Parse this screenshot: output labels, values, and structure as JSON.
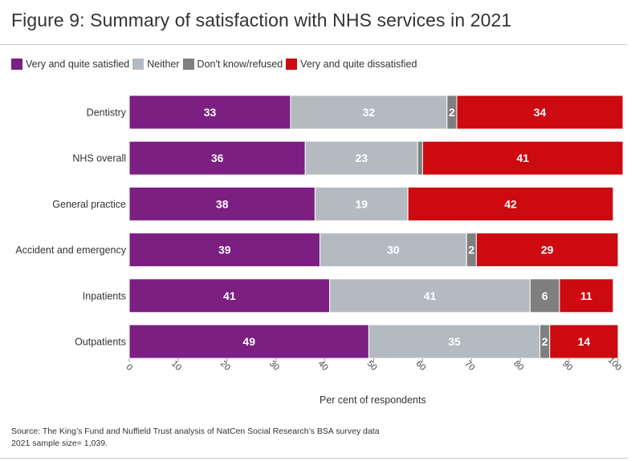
{
  "figure": {
    "title": "Figure 9: Summary of satisfaction with NHS services in 2021",
    "source_line1": "Source: The King’s Fund and Nuffield Trust analysis of NatCen Social Research’s BSA survey data",
    "source_line2": "2021 sample size= 1,039."
  },
  "chart_data": {
    "type": "bar",
    "orientation": "horizontal",
    "stacked": true,
    "title": "Figure 9: Summary of satisfaction with NHS services in 2021",
    "xlabel": "Per cent of respondents",
    "ylabel": "",
    "xlim": [
      0,
      100
    ],
    "xticks": [
      0,
      10,
      20,
      30,
      40,
      50,
      60,
      70,
      80,
      90,
      100
    ],
    "categories": [
      "Dentistry",
      "NHS overall",
      "General practice",
      "Accident and emergency",
      "Inpatients",
      "Outpatients"
    ],
    "series": [
      {
        "name": "Very and quite satisfied",
        "color": "#7b1f82",
        "values": [
          33,
          36,
          38,
          39,
          41,
          49
        ]
      },
      {
        "name": "Neither",
        "color": "#b3bbc0",
        "values": [
          32,
          23,
          19,
          30,
          41,
          35
        ]
      },
      {
        "name": "Don't know/refused",
        "color": "#7f7f7f",
        "values": [
          2,
          1,
          0,
          2,
          6,
          2
        ]
      },
      {
        "name": "Very and quite dissatisfied",
        "color": "#cc0a0f",
        "values": [
          34,
          41,
          42,
          29,
          11,
          14
        ]
      }
    ],
    "hidden_labels": [
      "NHS overall|Don't know/refused",
      "General practice|Don't know/refused"
    ],
    "legend_position": "top-left",
    "grid": false
  }
}
